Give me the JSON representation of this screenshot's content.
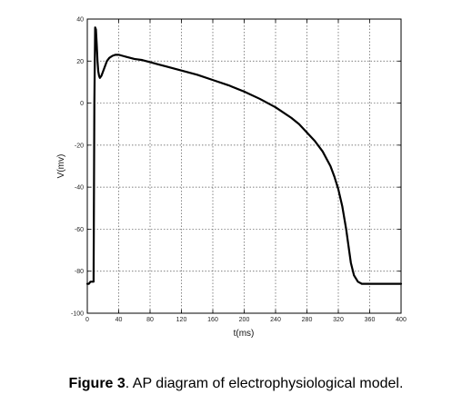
{
  "caption": {
    "label": "Figure 3",
    "text": ". AP diagram of electrophysiological model."
  },
  "chart_data": {
    "type": "line",
    "title": "",
    "xlabel": "t(ms)",
    "ylabel": "V(mv)",
    "xlim": [
      0,
      400
    ],
    "ylim": [
      -100,
      40
    ],
    "xticks": [
      0,
      40,
      80,
      120,
      160,
      200,
      240,
      280,
      320,
      360,
      400
    ],
    "yticks": [
      -100,
      -80,
      -60,
      -40,
      -20,
      0,
      20,
      40
    ],
    "grid": true,
    "line_color": "#000000",
    "series": [
      {
        "x": [
          0,
          2,
          4,
          6,
          8,
          9,
          10,
          11,
          12,
          13,
          14,
          15,
          16,
          18,
          20,
          22,
          25,
          28,
          32,
          36,
          40,
          45,
          50,
          55,
          60,
          70,
          80,
          90,
          100,
          120,
          140,
          160,
          180,
          200,
          220,
          240,
          260,
          270,
          280,
          290,
          300,
          310,
          315,
          320,
          325,
          330,
          333,
          336,
          340,
          345,
          350,
          355,
          360,
          370,
          380,
          390,
          400
        ],
        "y": [
          -86,
          -86,
          -85,
          -85,
          -85,
          0,
          36,
          35,
          28,
          20,
          15,
          13,
          12,
          13,
          15,
          17,
          20,
          21.5,
          22.5,
          23,
          23,
          22.5,
          22,
          21.5,
          21,
          20.5,
          19.5,
          18.5,
          17.5,
          15.5,
          13.5,
          11,
          8.5,
          5.5,
          2,
          -2,
          -7,
          -10,
          -14,
          -18,
          -23,
          -30,
          -35,
          -41,
          -49,
          -60,
          -68,
          -76,
          -82,
          -85,
          -86,
          -86,
          -86,
          -86,
          -86,
          -86,
          -86
        ]
      }
    ]
  }
}
